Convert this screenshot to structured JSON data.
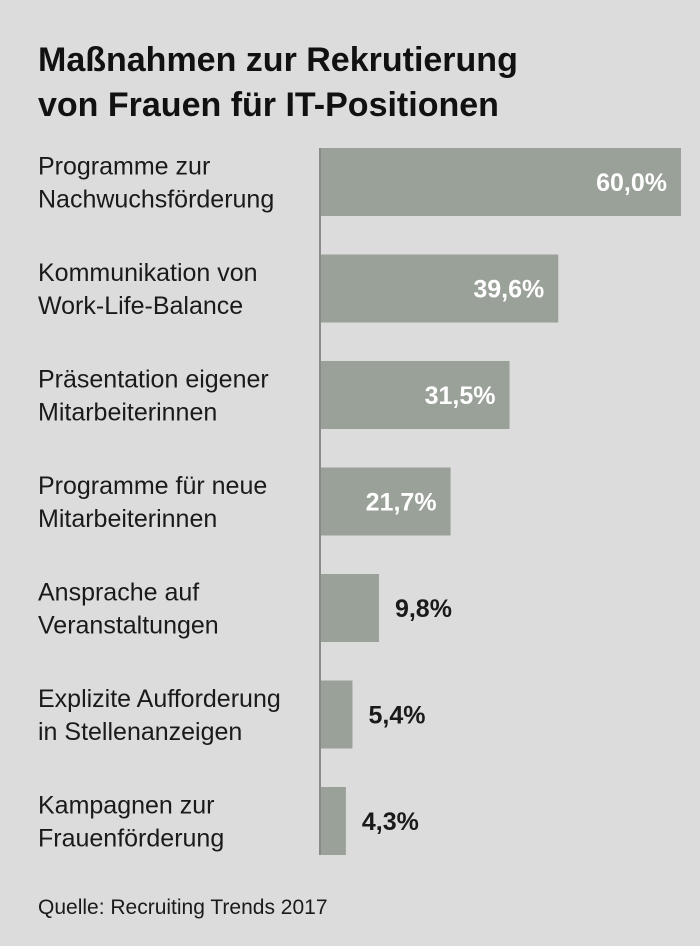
{
  "title_lines": [
    "Maßnahmen zur Rekrutierung",
    "von Frauen für IT-Positionen"
  ],
  "source": "Quelle: Recruiting Trends 2017",
  "colors": {
    "background": "#dcdcdc",
    "bar": "#9aa198",
    "axis": "#8a8a8a",
    "text": "#1a1a1a"
  },
  "chart_data": {
    "type": "bar",
    "orientation": "horizontal",
    "title": "Maßnahmen zur Rekrutierung von Frauen für IT-Positionen",
    "categories": [
      [
        "Programme zur",
        "Nachwuchsförderung"
      ],
      [
        "Kommunikation von",
        "Work-Life-Balance"
      ],
      [
        "Präsentation eigener",
        "Mitarbeiterinnen"
      ],
      [
        "Programme für neue",
        "Mitarbeiterinnen"
      ],
      [
        "Ansprache auf",
        "Veranstaltungen"
      ],
      [
        "Explizite Aufforderung",
        "in Stellenanzeigen"
      ],
      [
        "Kampagnen zur",
        "Frauenförderung"
      ]
    ],
    "values": [
      60.0,
      39.6,
      31.5,
      21.7,
      9.8,
      5.4,
      4.3
    ],
    "value_labels": [
      "60,0%",
      "39,6%",
      "31,5%",
      "21,7%",
      "9,8%",
      "5,4%",
      "4,3%"
    ],
    "unit": "%",
    "xlim": [
      0,
      60
    ],
    "xlabel": "",
    "ylabel": ""
  }
}
